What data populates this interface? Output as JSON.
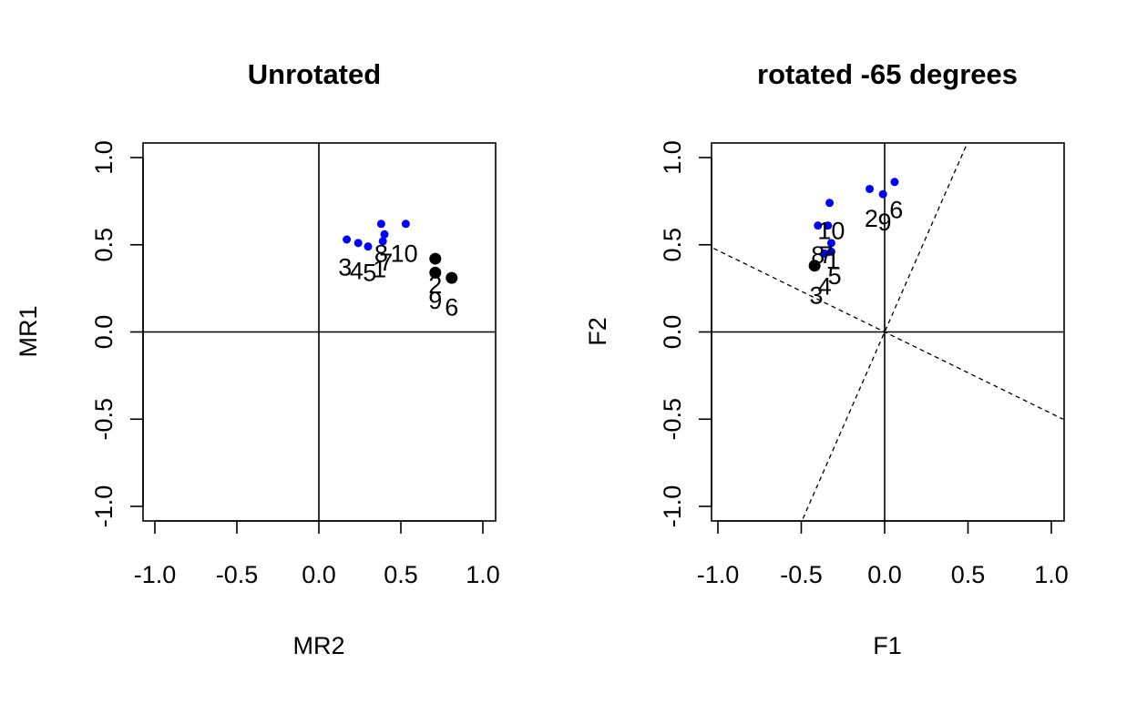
{
  "colors": {
    "axis": "#000000",
    "blue_points": "#0000ff",
    "black_points": "#000000"
  },
  "chart_data": [
    {
      "type": "scatter",
      "title": "Unrotated",
      "xlabel": "MR2",
      "ylabel": "MR1",
      "xlim": [
        -1.0,
        1.0
      ],
      "ylim": [
        -1.0,
        1.0
      ],
      "xticks": [
        "-1.0",
        "-0.5",
        "0.0",
        "0.5",
        "1.0"
      ],
      "yticks": [
        "-1.0",
        "-0.5",
        "0.0",
        "0.5",
        "1.0"
      ],
      "reference_lines": [
        {
          "kind": "solid",
          "orientation": "horizontal",
          "value": 0
        },
        {
          "kind": "solid",
          "orientation": "vertical",
          "value": 0
        }
      ],
      "series": [
        {
          "color": "blue",
          "marker": "small-dot",
          "points": [
            {
              "x": 0.17,
              "y": 0.53
            },
            {
              "x": 0.24,
              "y": 0.51
            },
            {
              "x": 0.3,
              "y": 0.49
            },
            {
              "x": 0.38,
              "y": 0.62
            },
            {
              "x": 0.4,
              "y": 0.56
            },
            {
              "x": 0.39,
              "y": 0.52
            },
            {
              "x": 0.53,
              "y": 0.62
            }
          ]
        },
        {
          "color": "black",
          "marker": "large-dot",
          "points": [
            {
              "x": 0.71,
              "y": 0.42
            },
            {
              "x": 0.71,
              "y": 0.34
            },
            {
              "x": 0.81,
              "y": 0.31
            }
          ]
        }
      ],
      "point_labels": [
        {
          "text": "3",
          "x": 0.16,
          "y": 0.37
        },
        {
          "text": "4",
          "x": 0.23,
          "y": 0.35
        },
        {
          "text": "5",
          "x": 0.31,
          "y": 0.34
        },
        {
          "text": "1",
          "x": 0.37,
          "y": 0.36
        },
        {
          "text": "8",
          "x": 0.38,
          "y": 0.45
        },
        {
          "text": "7",
          "x": 0.41,
          "y": 0.4
        },
        {
          "text": "10",
          "x": 0.52,
          "y": 0.45
        },
        {
          "text": "2",
          "x": 0.71,
          "y": 0.27
        },
        {
          "text": "9",
          "x": 0.71,
          "y": 0.18
        },
        {
          "text": "6",
          "x": 0.81,
          "y": 0.14
        }
      ]
    },
    {
      "type": "scatter",
      "title": "rotated -65 degrees",
      "xlabel": "F1",
      "ylabel": "F2",
      "xlim": [
        -1.0,
        1.0
      ],
      "ylim": [
        -1.0,
        1.0
      ],
      "xticks": [
        "-1.0",
        "-0.5",
        "0.0",
        "0.5",
        "1.0"
      ],
      "yticks": [
        "-1.0",
        "-0.5",
        "0.0",
        "0.5",
        "1.0"
      ],
      "reference_lines": [
        {
          "kind": "solid",
          "orientation": "horizontal",
          "value": 0
        },
        {
          "kind": "solid",
          "orientation": "vertical",
          "value": 0
        },
        {
          "kind": "dashed",
          "from": [
            -1.07,
            0.5
          ],
          "to": [
            1.07,
            -0.5
          ]
        },
        {
          "kind": "dashed",
          "from": [
            -0.49,
            -1.07
          ],
          "to": [
            0.49,
            1.07
          ]
        }
      ],
      "series": [
        {
          "color": "blue",
          "marker": "small-dot",
          "points": [
            {
              "x": -0.09,
              "y": 0.82
            },
            {
              "x": -0.01,
              "y": 0.79
            },
            {
              "x": 0.06,
              "y": 0.86
            },
            {
              "x": -0.33,
              "y": 0.74
            },
            {
              "x": -0.4,
              "y": 0.61
            },
            {
              "x": -0.34,
              "y": 0.61
            },
            {
              "x": -0.32,
              "y": 0.51
            },
            {
              "x": -0.32,
              "y": 0.46
            },
            {
              "x": -0.36,
              "y": 0.45
            }
          ]
        },
        {
          "color": "black",
          "marker": "large-dot",
          "points": [
            {
              "x": -0.42,
              "y": 0.38
            }
          ]
        }
      ],
      "point_labels": [
        {
          "text": "2",
          "x": -0.08,
          "y": 0.65
        },
        {
          "text": "9",
          "x": 0.0,
          "y": 0.63
        },
        {
          "text": "6",
          "x": 0.07,
          "y": 0.7
        },
        {
          "text": "10",
          "x": -0.32,
          "y": 0.58
        },
        {
          "text": "8",
          "x": -0.4,
          "y": 0.44
        },
        {
          "text": "7",
          "x": -0.35,
          "y": 0.44
        },
        {
          "text": "1",
          "x": -0.31,
          "y": 0.41
        },
        {
          "text": "5",
          "x": -0.3,
          "y": 0.32
        },
        {
          "text": "4",
          "x": -0.36,
          "y": 0.26
        },
        {
          "text": "3",
          "x": -0.41,
          "y": 0.21
        }
      ]
    }
  ]
}
